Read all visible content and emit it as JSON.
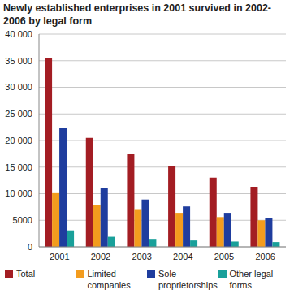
{
  "chart_data": {
    "type": "bar",
    "title": "Newly established enterprises in 2001 survived in 2002-2006 by legal form",
    "categories": [
      "2001",
      "2002",
      "2003",
      "2004",
      "2005",
      "2006"
    ],
    "series": [
      {
        "name": "Total",
        "color": "#a31d23",
        "values": [
          35500,
          20500,
          17500,
          15100,
          13000,
          11300
        ]
      },
      {
        "name": "Limited companies",
        "color": "#f39c1e",
        "values": [
          10100,
          7800,
          7100,
          6400,
          5600,
          5000
        ]
      },
      {
        "name": "Sole proprietorships",
        "color": "#1f3d9e",
        "values": [
          22300,
          11000,
          8900,
          7600,
          6400,
          5400
        ]
      },
      {
        "name": "Other legal forms",
        "color": "#19a09a",
        "values": [
          3100,
          1900,
          1500,
          1200,
          1000,
          900
        ]
      }
    ],
    "ylim": [
      0,
      40000
    ],
    "yticks": [
      0,
      5000,
      {
        "value": 10000,
        "label": "10 000"
      },
      {
        "value": 15000,
        "label": "15 000"
      },
      {
        "value": 20000,
        "label": "20 000"
      },
      {
        "value": 25000,
        "label": "25 000"
      },
      {
        "value": 30000,
        "label": "30 000"
      },
      {
        "value": 35000,
        "label": "35 000"
      },
      {
        "value": 40000,
        "label": "40 000"
      }
    ],
    "grid": true
  }
}
